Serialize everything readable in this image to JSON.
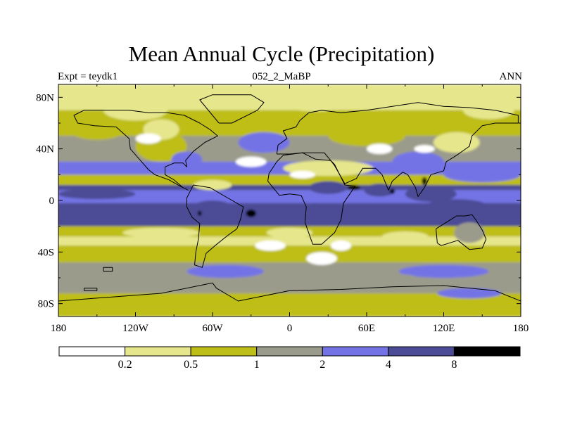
{
  "chart_data": {
    "type": "heatmap",
    "title": "Mean Annual Cycle (Precipitation)",
    "left_string": "Expt = teydk1",
    "center_string": "052_2_MaBP",
    "right_string": "ANN",
    "x_range": [
      -180,
      180
    ],
    "y_range": [
      -90,
      90
    ],
    "x_ticks": [
      {
        "value": -180,
        "label": "180"
      },
      {
        "value": -120,
        "label": "120W"
      },
      {
        "value": -60,
        "label": "60W"
      },
      {
        "value": 0,
        "label": "0"
      },
      {
        "value": 60,
        "label": "60E"
      },
      {
        "value": 120,
        "label": "120E"
      },
      {
        "value": 180,
        "label": "180"
      }
    ],
    "y_ticks": [
      {
        "value": 80,
        "label": "80N"
      },
      {
        "value": 40,
        "label": "40N"
      },
      {
        "value": 0,
        "label": "0"
      },
      {
        "value": -40,
        "label": "40S"
      },
      {
        "value": -80,
        "label": "80S"
      }
    ],
    "colorbar": {
      "levels": [
        "0.2",
        "0.5",
        "1",
        "2",
        "4",
        "8"
      ],
      "colors": [
        "#ffffff",
        "#e6e68c",
        "#bebe19",
        "#9b9b8c",
        "#7373e6",
        "#4b4b96",
        "#000000"
      ]
    },
    "latitude_bands": [
      {
        "lat_min": 70,
        "lat_max": 90,
        "class": 1
      },
      {
        "lat_min": 50,
        "lat_max": 70,
        "class": 2
      },
      {
        "lat_min": 30,
        "lat_max": 50,
        "class": 3
      },
      {
        "lat_min": 20,
        "lat_max": 30,
        "class": 4
      },
      {
        "lat_min": 12,
        "lat_max": 20,
        "class": 2
      },
      {
        "lat_min": 8,
        "lat_max": 12,
        "class": 5
      },
      {
        "lat_min": -2,
        "lat_max": 8,
        "class": 4
      },
      {
        "lat_min": -20,
        "lat_max": -2,
        "class": 5
      },
      {
        "lat_min": -28,
        "lat_max": -20,
        "class": 2
      },
      {
        "lat_min": -35,
        "lat_max": -28,
        "class": 1
      },
      {
        "lat_min": -48,
        "lat_max": -35,
        "class": 2
      },
      {
        "lat_min": -62,
        "lat_max": -48,
        "class": 3
      },
      {
        "lat_min": -72,
        "lat_max": -62,
        "class": 3
      },
      {
        "lat_min": -82,
        "lat_max": -72,
        "class": 2
      },
      {
        "lat_min": -90,
        "lat_max": -82,
        "class": 2
      }
    ],
    "patches": [
      {
        "lon": -150,
        "lat": 55,
        "rx": 22,
        "ry": 8,
        "class": 2
      },
      {
        "lon": -100,
        "lat": 42,
        "rx": 20,
        "ry": 12,
        "class": 2
      },
      {
        "lon": -100,
        "lat": 55,
        "rx": 14,
        "ry": 8,
        "class": 1
      },
      {
        "lon": -120,
        "lat": 70,
        "rx": 25,
        "ry": 8,
        "class": 1
      },
      {
        "lon": -80,
        "lat": 32,
        "rx": 12,
        "ry": 6,
        "class": 4
      },
      {
        "lon": -20,
        "lat": 45,
        "rx": 20,
        "ry": 8,
        "class": 4
      },
      {
        "lon": 20,
        "lat": 75,
        "rx": 25,
        "ry": 6,
        "class": 1
      },
      {
        "lon": 60,
        "lat": 50,
        "rx": 30,
        "ry": 8,
        "class": 2
      },
      {
        "lon": 100,
        "lat": 30,
        "rx": 20,
        "ry": 8,
        "class": 4
      },
      {
        "lon": 30,
        "lat": 25,
        "rx": 35,
        "ry": 6,
        "class": 1
      },
      {
        "lon": 130,
        "lat": 45,
        "rx": 18,
        "ry": 8,
        "class": 1
      },
      {
        "lon": 150,
        "lat": 20,
        "rx": 30,
        "ry": 6,
        "class": 4
      },
      {
        "lon": -60,
        "lat": 12,
        "rx": 15,
        "ry": 4,
        "class": 1
      },
      {
        "lon": 30,
        "lat": 10,
        "rx": 15,
        "ry": 5,
        "class": 5
      },
      {
        "lon": 70,
        "lat": 8,
        "rx": 12,
        "ry": 5,
        "class": 5
      },
      {
        "lon": 110,
        "lat": 5,
        "rx": 20,
        "ry": 6,
        "class": 5
      },
      {
        "lon": -150,
        "lat": 5,
        "rx": 30,
        "ry": 4,
        "class": 5
      },
      {
        "lon": -60,
        "lat": -10,
        "rx": 20,
        "ry": 10,
        "class": 5
      },
      {
        "lon": 20,
        "lat": -10,
        "rx": 10,
        "ry": 8,
        "class": 5
      },
      {
        "lon": 130,
        "lat": -5,
        "rx": 25,
        "ry": 6,
        "class": 5
      },
      {
        "lon": -120,
        "lat": -12,
        "rx": 35,
        "ry": 5,
        "class": 5
      },
      {
        "lon": -100,
        "lat": -25,
        "rx": 30,
        "ry": 4,
        "class": 1
      },
      {
        "lon": 0,
        "lat": -25,
        "rx": 18,
        "ry": 4,
        "class": 1
      },
      {
        "lon": 90,
        "lat": -28,
        "rx": 18,
        "ry": 4,
        "class": 1
      },
      {
        "lon": 140,
        "lat": -25,
        "rx": 12,
        "ry": 8,
        "class": 3
      },
      {
        "lon": 25,
        "lat": -45,
        "rx": 12,
        "ry": 5,
        "class": 0
      },
      {
        "lon": -15,
        "lat": -35,
        "rx": 12,
        "ry": 4,
        "class": 0
      },
      {
        "lon": -50,
        "lat": -55,
        "rx": 30,
        "ry": 5,
        "class": 4
      },
      {
        "lon": 120,
        "lat": -55,
        "rx": 35,
        "ry": 5,
        "class": 4
      },
      {
        "lon": 60,
        "lat": -60,
        "rx": 40,
        "ry": 4,
        "class": 3
      },
      {
        "lon": -120,
        "lat": -65,
        "rx": 35,
        "ry": 4,
        "class": 3
      },
      {
        "lon": 140,
        "lat": -72,
        "rx": 25,
        "ry": 4,
        "class": 4
      },
      {
        "lon": 155,
        "lat": 70,
        "rx": 20,
        "ry": 7,
        "class": 1
      },
      {
        "lon": 70,
        "lat": 40,
        "rx": 10,
        "ry": 4,
        "class": 0
      },
      {
        "lon": -110,
        "lat": 48,
        "rx": 10,
        "ry": 4,
        "class": 0
      },
      {
        "lon": -30,
        "lat": 30,
        "rx": 12,
        "ry": 4,
        "class": 0
      },
      {
        "lon": 10,
        "lat": 20,
        "rx": 10,
        "ry": 3,
        "class": 0
      },
      {
        "lon": 105,
        "lat": 40,
        "rx": 8,
        "ry": 3,
        "class": 0
      },
      {
        "lon": 40,
        "lat": -35,
        "rx": 8,
        "ry": 4,
        "class": 0
      },
      {
        "lon": -30,
        "lat": -10,
        "rx": 4,
        "ry": 3,
        "class": 6
      },
      {
        "lon": 50,
        "lat": 10,
        "rx": 5,
        "ry": 2,
        "class": 6
      },
      {
        "lon": 80,
        "lat": 7,
        "rx": 2,
        "ry": 2,
        "class": 6
      },
      {
        "lon": 105,
        "lat": 15,
        "rx": 2,
        "ry": 3,
        "class": 6
      },
      {
        "lon": -70,
        "lat": -10,
        "rx": 1.5,
        "ry": 2,
        "class": 6
      }
    ],
    "coastlines": [
      [
        [
          -168,
          66
        ],
        [
          -160,
          70
        ],
        [
          -140,
          70
        ],
        [
          -125,
          70
        ],
        [
          -110,
          68
        ],
        [
          -95,
          68
        ],
        [
          -82,
          66
        ],
        [
          -70,
          60
        ],
        [
          -62,
          55
        ],
        [
          -56,
          50
        ],
        [
          -66,
          45
        ],
        [
          -75,
          38
        ],
        [
          -81,
          31
        ],
        [
          -80,
          26
        ],
        [
          -83,
          29
        ],
        [
          -90,
          29
        ],
        [
          -97,
          26
        ],
        [
          -97,
          20
        ],
        [
          -90,
          16
        ],
        [
          -83,
          10
        ],
        [
          -79,
          8
        ],
        [
          -85,
          11
        ],
        [
          -94,
          16
        ],
        [
          -105,
          20
        ],
        [
          -110,
          24
        ],
        [
          -117,
          32
        ],
        [
          -124,
          40
        ],
        [
          -125,
          48
        ],
        [
          -135,
          57
        ],
        [
          -152,
          58
        ],
        [
          -165,
          60
        ],
        [
          -168,
          66
        ]
      ],
      [
        [
          -75,
          12
        ],
        [
          -62,
          10
        ],
        [
          -50,
          3
        ],
        [
          -36,
          -5
        ],
        [
          -38,
          -14
        ],
        [
          -41,
          -22
        ],
        [
          -48,
          -27
        ],
        [
          -58,
          -35
        ],
        [
          -65,
          -41
        ],
        [
          -68,
          -52
        ],
        [
          -74,
          -50
        ],
        [
          -73,
          -40
        ],
        [
          -71,
          -30
        ],
        [
          -70,
          -18
        ],
        [
          -76,
          -13
        ],
        [
          -80,
          -5
        ],
        [
          -80,
          2
        ],
        [
          -77,
          8
        ],
        [
          -75,
          12
        ]
      ],
      [
        [
          -10,
          36
        ],
        [
          -9,
          43
        ],
        [
          -2,
          48
        ],
        [
          -5,
          54
        ],
        [
          5,
          57
        ],
        [
          8,
          62
        ],
        [
          15,
          68
        ],
        [
          25,
          70
        ],
        [
          40,
          68
        ],
        [
          60,
          70
        ],
        [
          80,
          73
        ],
        [
          100,
          76
        ],
        [
          120,
          73
        ],
        [
          140,
          72
        ],
        [
          160,
          70
        ],
        [
          178,
          66
        ],
        [
          178,
          60
        ],
        [
          160,
          60
        ],
        [
          150,
          58
        ],
        [
          142,
          50
        ],
        [
          140,
          42
        ],
        [
          130,
          35
        ],
        [
          122,
          30
        ],
        [
          120,
          23
        ],
        [
          110,
          20
        ],
        [
          105,
          10
        ],
        [
          100,
          3
        ],
        [
          98,
          10
        ],
        [
          92,
          20
        ],
        [
          88,
          22
        ],
        [
          80,
          15
        ],
        [
          77,
          8
        ],
        [
          72,
          20
        ],
        [
          67,
          25
        ],
        [
          57,
          25
        ],
        [
          52,
          17
        ],
        [
          43,
          13
        ],
        [
          35,
          27
        ],
        [
          32,
          31
        ],
        [
          27,
          37
        ],
        [
          15,
          37
        ],
        [
          10,
          37
        ],
        [
          0,
          36
        ],
        [
          -10,
          36
        ]
      ],
      [
        [
          -17,
          15
        ],
        [
          -16,
          21
        ],
        [
          -10,
          30
        ],
        [
          -5,
          35
        ],
        [
          10,
          37
        ],
        [
          20,
          32
        ],
        [
          32,
          31
        ],
        [
          35,
          28
        ],
        [
          43,
          12
        ],
        [
          51,
          11
        ],
        [
          42,
          -2
        ],
        [
          40,
          -15
        ],
        [
          35,
          -25
        ],
        [
          25,
          -34
        ],
        [
          18,
          -34
        ],
        [
          12,
          -17
        ],
        [
          13,
          -5
        ],
        [
          9,
          4
        ],
        [
          0,
          5
        ],
        [
          -8,
          4
        ],
        [
          -17,
          15
        ]
      ],
      [
        [
          114,
          -22
        ],
        [
          122,
          -17
        ],
        [
          130,
          -12
        ],
        [
          137,
          -12
        ],
        [
          142,
          -11
        ],
        [
          145,
          -15
        ],
        [
          150,
          -23
        ],
        [
          153,
          -30
        ],
        [
          150,
          -37
        ],
        [
          140,
          -38
        ],
        [
          131,
          -31
        ],
        [
          118,
          -35
        ],
        [
          115,
          -33
        ],
        [
          114,
          -22
        ]
      ],
      [
        [
          -55,
          60
        ],
        [
          -45,
          60
        ],
        [
          -25,
          70
        ],
        [
          -20,
          76
        ],
        [
          -30,
          82
        ],
        [
          -60,
          82
        ],
        [
          -70,
          78
        ],
        [
          -55,
          60
        ]
      ],
      [
        [
          -180,
          -78
        ],
        [
          -140,
          -75
        ],
        [
          -100,
          -72
        ],
        [
          -60,
          -64
        ],
        [
          -57,
          -68
        ],
        [
          -40,
          -78
        ],
        [
          0,
          -70
        ],
        [
          40,
          -69
        ],
        [
          80,
          -67
        ],
        [
          120,
          -66
        ],
        [
          160,
          -70
        ],
        [
          180,
          -78
        ]
      ],
      [
        [
          -160,
          -70
        ],
        [
          -150,
          -70
        ],
        [
          -150,
          -68
        ],
        [
          -160,
          -68
        ],
        [
          -160,
          -70
        ]
      ],
      [
        [
          -145,
          -55
        ],
        [
          -138,
          -55
        ],
        [
          -138,
          -52
        ],
        [
          -145,
          -52
        ],
        [
          -145,
          -55
        ]
      ]
    ]
  }
}
